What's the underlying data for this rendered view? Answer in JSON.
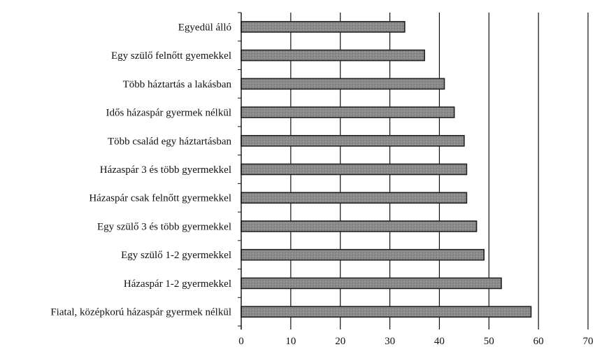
{
  "chart_data": {
    "type": "bar",
    "orientation": "horizontal",
    "categories": [
      "Egyedül álló",
      "Egy szülő felnőtt gyemekkel",
      "Több háztartás a lakásban",
      "Idős házaspár gyermek nélkül",
      "Több család egy háztartásban",
      "Házaspár 3 és több gyermekkel",
      "Házaspár csak felnőtt gyermekkel",
      "Egy szülő 3 és több gyermekkel",
      "Egy szülő 1-2 gyermekkel",
      "Házaspár 1-2 gyermekkel",
      "Fiatal, középkorú házaspár gyermek nélkül"
    ],
    "values": [
      33,
      37,
      41,
      43,
      45,
      45.5,
      45.5,
      47.5,
      49,
      52.5,
      58.5
    ],
    "title": "",
    "xlabel": "",
    "ylabel": "",
    "xlim": [
      0,
      70
    ],
    "xticks": [
      "0",
      "10",
      "20",
      "30",
      "40",
      "50",
      "60",
      "70"
    ],
    "grid": "vertical",
    "legend": "none",
    "bar_color": "#8a8a8a",
    "bar_edge_color": "#222222"
  }
}
